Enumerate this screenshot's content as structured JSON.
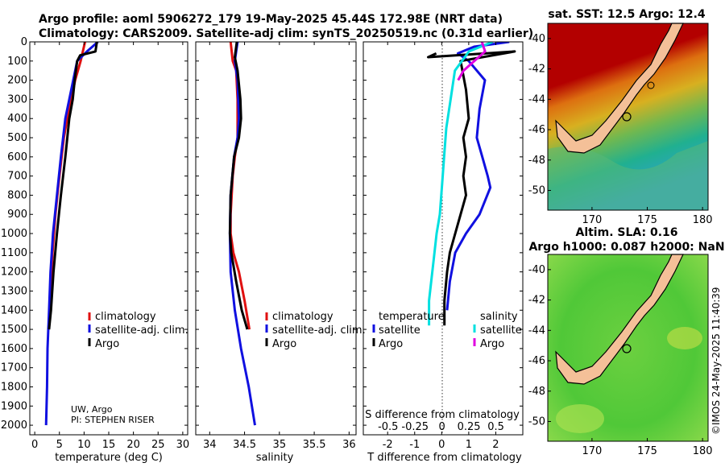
{
  "header": {
    "line1": "Argo profile: aoml 5906272_179 19-May-2025 45.44S 172.98E (NRT data)",
    "line2": "Climatology: CARS2009. Satellite-adj clim: synTS_20250519.nc (0.31d earlier)"
  },
  "chart_data": [
    {
      "type": "line",
      "id": "temperature",
      "xlabel": "temperature (deg C)",
      "ylabel": "depth",
      "xlim": [
        -1,
        31
      ],
      "ylim": [
        2050,
        0
      ],
      "xticks": [
        "0",
        "5",
        "10",
        "15",
        "20",
        "25",
        "30"
      ],
      "yticks": [
        "0",
        "100",
        "200",
        "300",
        "400",
        "500",
        "600",
        "700",
        "800",
        "900",
        "1000",
        "1100",
        "1200",
        "1300",
        "1400",
        "1500",
        "1600",
        "1700",
        "1800",
        "1900",
        "2000"
      ],
      "series": [
        {
          "name": "climatology",
          "color": "#e01010",
          "x": [
            10.2,
            9.3,
            8.2,
            7.4,
            6.6,
            5.9,
            5.0,
            4.2,
            3.6,
            3.2,
            2.8
          ],
          "y": [
            0,
            100,
            200,
            300,
            400,
            500,
            700,
            900,
            1100,
            1300,
            1500
          ]
        },
        {
          "name": "satellite-adj. clim.",
          "color": "#1010e0",
          "x": [
            12.8,
            10.6,
            8.6,
            7.8,
            7.0,
            6.2,
            5.3,
            4.5,
            3.7,
            3.2,
            2.9,
            2.6,
            2.5,
            2.3
          ],
          "y": [
            0,
            50,
            100,
            200,
            300,
            400,
            600,
            800,
            1000,
            1200,
            1400,
            1600,
            1800,
            2000
          ]
        },
        {
          "name": "Argo",
          "color": "#000000",
          "x": [
            12.6,
            12.3,
            9.2,
            8.6,
            8.1,
            7.7,
            7.0,
            6.2,
            5.3,
            4.5,
            3.8,
            3.3,
            2.9
          ],
          "y": [
            0,
            50,
            70,
            100,
            200,
            300,
            400,
            600,
            800,
            1000,
            1200,
            1400,
            1500
          ]
        }
      ],
      "legend": [
        "climatology",
        "satellite-adj. clim.",
        "Argo"
      ],
      "annotation": [
        "UW, Argo",
        "PI: STEPHEN RISER"
      ]
    },
    {
      "type": "line",
      "id": "salinity",
      "xlabel": "salinity",
      "xlim": [
        33.8,
        36.1
      ],
      "ylim": [
        2050,
        0
      ],
      "xticks": [
        "34",
        "34.5",
        "35",
        "35.5",
        "36"
      ],
      "series": [
        {
          "name": "climatology",
          "color": "#e01010",
          "x": [
            34.3,
            34.33,
            34.38,
            34.4,
            34.4,
            34.36,
            34.33,
            34.3,
            34.3,
            34.34,
            34.42,
            34.5,
            34.57
          ],
          "y": [
            0,
            100,
            150,
            300,
            500,
            600,
            700,
            900,
            1000,
            1100,
            1200,
            1350,
            1500
          ]
        },
        {
          "name": "satellite-adj. clim.",
          "color": "#1010e0",
          "x": [
            34.4,
            34.38,
            34.36,
            34.4,
            34.42,
            34.4,
            34.35,
            34.3,
            34.29,
            34.3,
            34.36,
            34.45,
            34.56,
            34.65
          ],
          "y": [
            0,
            50,
            100,
            200,
            400,
            500,
            600,
            800,
            1000,
            1200,
            1400,
            1600,
            1800,
            2000
          ]
        },
        {
          "name": "Argo",
          "color": "#000000",
          "x": [
            34.39,
            34.36,
            34.4,
            34.44,
            34.45,
            34.42,
            34.35,
            34.3,
            34.29,
            34.31,
            34.38,
            34.46,
            34.54
          ],
          "y": [
            0,
            80,
            150,
            300,
            400,
            500,
            600,
            800,
            1000,
            1100,
            1250,
            1400,
            1500
          ]
        }
      ],
      "legend": [
        "climatology",
        "satellite-adj. clim.",
        "Argo"
      ]
    },
    {
      "type": "line",
      "id": "difference",
      "xlabel": "T difference from climatology",
      "xlabel_top": "S difference from climatology",
      "xlim": [
        -2.9,
        3.0
      ],
      "xlim_salinity": [
        -0.73,
        0.75
      ],
      "ylim": [
        2050,
        0
      ],
      "xticks": [
        "-2",
        "-1",
        "0",
        "1",
        "2"
      ],
      "xticks_top": [
        "-0.5",
        "-0.25",
        "0",
        "0.25",
        "0.5"
      ],
      "series": [
        {
          "name": "T satellite",
          "color": "#1010e0",
          "x": [
            2.5,
            1.2,
            0.6,
            1.0,
            1.6,
            1.4,
            1.3,
            1.5,
            1.7,
            1.8,
            1.4,
            0.9,
            0.5,
            0.3,
            0.2
          ],
          "y": [
            0,
            25,
            60,
            100,
            200,
            350,
            500,
            600,
            700,
            760,
            900,
            1000,
            1100,
            1250,
            1400
          ]
        },
        {
          "name": "T Argo",
          "color": "#000000",
          "x": [
            -0.2,
            -0.5,
            2.7,
            0.7,
            0.9,
            1.0,
            0.8,
            0.9,
            0.8,
            0.9,
            0.7,
            0.5,
            0.3,
            0.2,
            0.1,
            0.1
          ],
          "y": [
            60,
            80,
            50,
            100,
            250,
            400,
            500,
            600,
            700,
            800,
            900,
            1000,
            1100,
            1200,
            1350,
            1480
          ]
        },
        {
          "name": "S satellite",
          "color": "#00e0e0",
          "x": [
            0.47,
            0.25,
            0.12,
            0.08,
            0.04,
            0.02,
            0.0,
            -0.02,
            -0.05,
            -0.08,
            -0.1,
            -0.12,
            -0.12
          ],
          "y": [
            0,
            50,
            150,
            300,
            450,
            600,
            750,
            900,
            1000,
            1150,
            1250,
            1350,
            1480
          ]
        },
        {
          "name": "S Argo",
          "color": "#e000e0",
          "x": [
            0.37,
            0.4,
            0.3,
            0.2,
            0.15
          ],
          "y": [
            0,
            50,
            100,
            150,
            200
          ]
        }
      ],
      "legend_temperature": [
        "temperature",
        "satellite",
        "Argo"
      ],
      "legend_salinity": [
        "salinity",
        "satellite",
        "Argo"
      ]
    }
  ],
  "maps": {
    "sst": {
      "title": "sat. SST: 12.5 Argo: 12.4",
      "yticks": [
        "-40",
        "-42",
        "-44",
        "-46",
        "-48",
        "-50"
      ],
      "xticks": [
        "170",
        "175",
        "180"
      ]
    },
    "sla": {
      "title1": "Altim. SLA: 0.16",
      "title2": "Argo h1000: 0.087 h2000: NaN",
      "yticks": [
        "-40",
        "-42",
        "-44",
        "-46",
        "-48",
        "-50"
      ],
      "xticks": [
        "170",
        "175",
        "180"
      ]
    },
    "copyright": "©IMOS 24-May-2025 11:40:39"
  }
}
